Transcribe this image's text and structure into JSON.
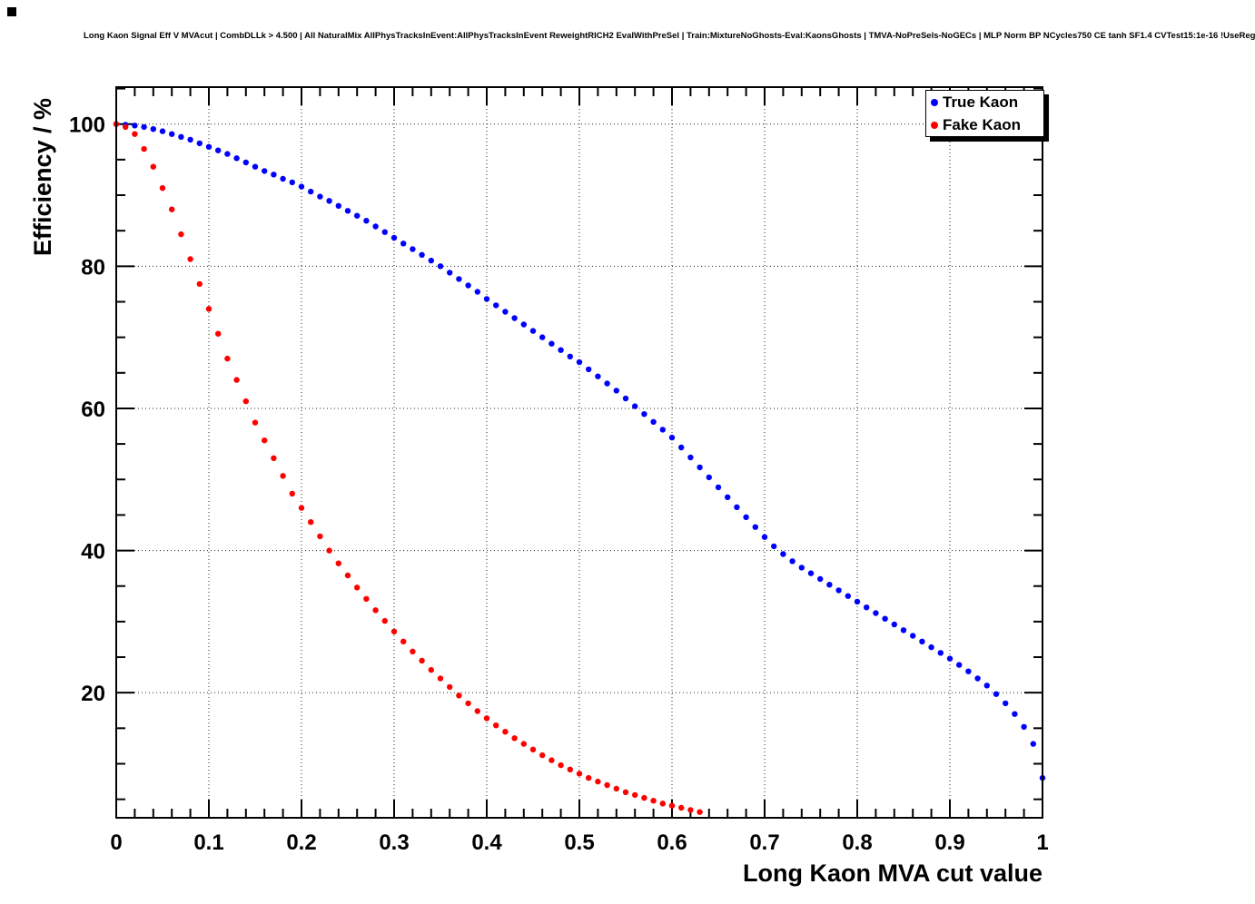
{
  "legend": {
    "entries": [
      {
        "label": "True Kaon",
        "color": "#0000ff"
      },
      {
        "label": "Fake Kaon",
        "color": "#ff0000"
      }
    ]
  },
  "chart_data": {
    "type": "scatter",
    "title": "Long Kaon Signal Eff V MVAcut | CombDLLk > 4.500 | All NaturalMix AllPhysTracksInEvent:AllPhysTracksInEvent ReweightRICH2 EvalWithPreSel | Train:MixtureNoGhosts-Eval:KaonsGhosts | TMVA-NoPreSels-NoGECs | MLP Norm BP NCycles750 CE tanh SF1.4 CVTest15:1e-16 !UseReg",
    "xlabel": "Long Kaon MVA cut value",
    "ylabel": "Efficiency / %",
    "xlim": [
      0,
      1
    ],
    "ylim": [
      2.4,
      105.2
    ],
    "grid": true,
    "legend_position": "top-right",
    "x_major_ticks": [
      0,
      0.1,
      0.2,
      0.3,
      0.4,
      0.5,
      0.6,
      0.7,
      0.8,
      0.9,
      1
    ],
    "x_tick_labels": [
      "0",
      "0.1",
      "0.2",
      "0.3",
      "0.4",
      "0.5",
      "0.6",
      "0.7",
      "0.8",
      "0.9",
      "1"
    ],
    "y_major_ticks": [
      20,
      40,
      60,
      80,
      100
    ],
    "y_tick_labels": [
      "20",
      "40",
      "60",
      "80",
      "100"
    ],
    "series": [
      {
        "name": "True Kaon",
        "color": "#0000ff",
        "marker": "circle",
        "x_start": 0.0,
        "x_step": 0.01,
        "y": [
          100.0,
          99.9,
          99.8,
          99.6,
          99.3,
          99.0,
          98.6,
          98.2,
          97.8,
          97.3,
          96.8,
          96.3,
          95.8,
          95.2,
          94.6,
          94.0,
          93.4,
          92.9,
          92.3,
          91.8,
          91.2,
          90.5,
          89.8,
          89.2,
          88.5,
          87.8,
          87.1,
          86.4,
          85.6,
          84.8,
          84.0,
          83.2,
          82.4,
          81.6,
          80.8,
          80.0,
          79.1,
          78.2,
          77.3,
          76.4,
          75.4,
          74.5,
          73.6,
          72.7,
          71.8,
          70.9,
          70.0,
          69.1,
          68.2,
          67.3,
          66.5,
          65.5,
          64.5,
          63.5,
          62.5,
          61.4,
          60.3,
          59.2,
          58.1,
          57.0,
          55.9,
          54.5,
          53.1,
          51.7,
          50.3,
          48.9,
          47.5,
          46.1,
          44.7,
          43.3,
          41.9,
          40.6,
          39.5,
          38.5,
          37.6,
          36.8,
          36.0,
          35.2,
          34.4,
          33.6,
          32.8,
          32.0,
          31.2,
          30.4,
          29.6,
          28.8,
          28.0,
          27.2,
          26.4,
          25.6,
          24.8,
          23.9,
          23.0,
          22.0,
          21.0,
          19.8,
          18.5,
          17.0,
          15.2,
          12.8,
          8.0
        ]
      },
      {
        "name": "Fake Kaon",
        "color": "#ff0000",
        "marker": "circle",
        "x_start": 0.0,
        "x_step": 0.01,
        "y": [
          100.0,
          99.6,
          98.6,
          96.5,
          94.0,
          91.0,
          88.0,
          84.5,
          81.0,
          77.5,
          74.0,
          70.5,
          67.0,
          64.0,
          61.0,
          58.0,
          55.5,
          53.0,
          50.5,
          48.0,
          46.0,
          44.0,
          42.0,
          40.0,
          38.2,
          36.5,
          34.8,
          33.2,
          31.6,
          30.1,
          28.6,
          27.2,
          25.8,
          24.5,
          23.2,
          22.0,
          20.8,
          19.6,
          18.5,
          17.4,
          16.4,
          15.4,
          14.5,
          13.6,
          12.8,
          12.0,
          11.2,
          10.5,
          9.8,
          9.2,
          8.6,
          8.0,
          7.5,
          7.0,
          6.5,
          6.0,
          5.6,
          5.2,
          4.8,
          4.4,
          4.1,
          3.8,
          3.5,
          3.2
        ]
      }
    ]
  }
}
